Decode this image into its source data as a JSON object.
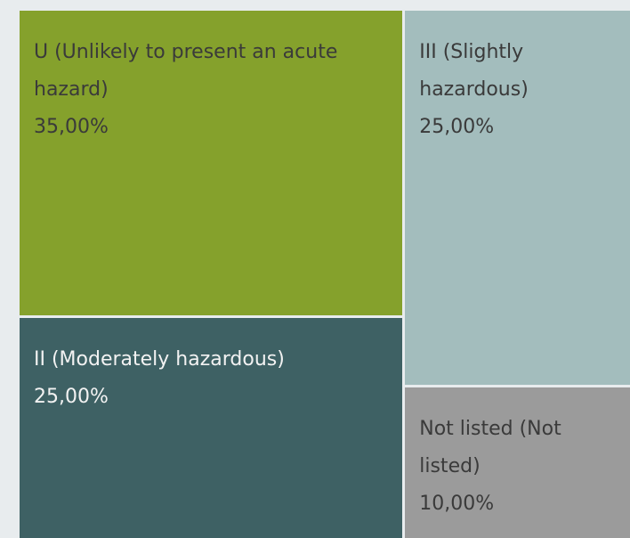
{
  "chart_data": {
    "type": "treemap",
    "categories": [
      "U (Unlikely to present an acute hazard)",
      "II (Moderately hazardous)",
      "III (Slightly hazardous)",
      "Not listed (Not listed)"
    ],
    "values": [
      35,
      25,
      25,
      10
    ],
    "value_labels": [
      "35,00%",
      "25,00%",
      "25,00%",
      "10,00%"
    ],
    "colors": [
      "#85a12c",
      "#3e6164",
      "#a3bdbd",
      "#9b9b9b"
    ]
  }
}
